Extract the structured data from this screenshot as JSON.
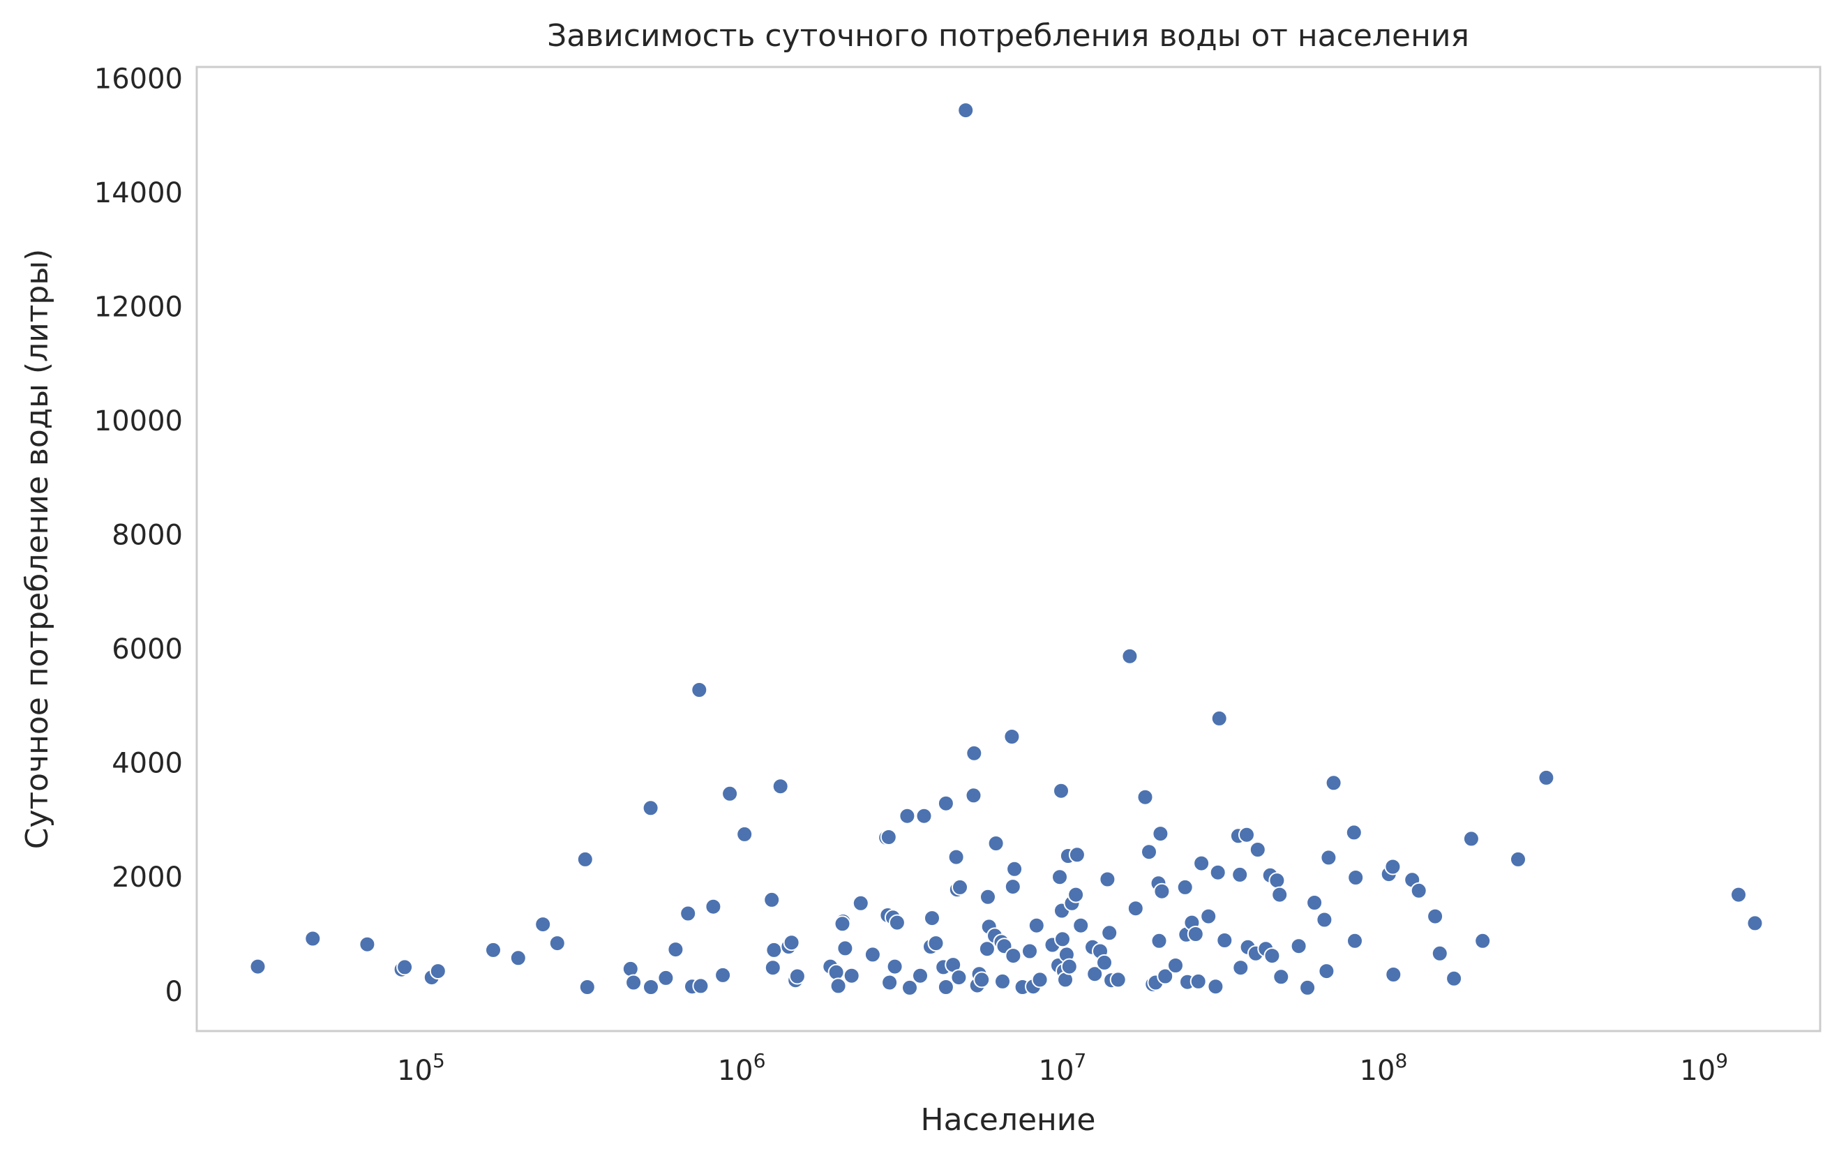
{
  "chart_data": {
    "type": "scatter",
    "title": "Зависимость суточного потребления воды от населения",
    "xlabel": "Население",
    "ylabel": "Суточное потребление воды (литры)",
    "x_scale": "log",
    "xlim": [
      20000,
      2300000000
    ],
    "ylim": [
      -700,
      16200
    ],
    "x_ticks": [
      {
        "value": 100000,
        "base": "10",
        "exp": "5"
      },
      {
        "value": 1000000,
        "base": "10",
        "exp": "6"
      },
      {
        "value": 10000000,
        "base": "10",
        "exp": "7"
      },
      {
        "value": 100000000,
        "base": "10",
        "exp": "8"
      },
      {
        "value": 1000000000,
        "base": "10",
        "exp": "9"
      }
    ],
    "y_ticks": [
      {
        "value": 0,
        "label": "0"
      },
      {
        "value": 2000,
        "label": "2000"
      },
      {
        "value": 4000,
        "label": "4000"
      },
      {
        "value": 6000,
        "label": "6000"
      },
      {
        "value": 8000,
        "label": "8000"
      },
      {
        "value": 10000,
        "label": "10000"
      },
      {
        "value": 12000,
        "label": "12000"
      },
      {
        "value": 14000,
        "label": "14000"
      },
      {
        "value": 16000,
        "label": "16000"
      }
    ],
    "grid": false,
    "marker_color": "#4c72b0",
    "points": [
      [
        31000,
        430
      ],
      [
        46000,
        920
      ],
      [
        68000,
        820
      ],
      [
        87000,
        380
      ],
      [
        89000,
        420
      ],
      [
        108000,
        240
      ],
      [
        113000,
        350
      ],
      [
        168000,
        720
      ],
      [
        201000,
        580
      ],
      [
        240000,
        1170
      ],
      [
        266000,
        840
      ],
      [
        325000,
        2310
      ],
      [
        330000,
        70
      ],
      [
        450000,
        390
      ],
      [
        460000,
        150
      ],
      [
        520000,
        3210
      ],
      [
        521000,
        70
      ],
      [
        580000,
        230
      ],
      [
        622000,
        730
      ],
      [
        680000,
        1360
      ],
      [
        700000,
        80
      ],
      [
        737000,
        5280
      ],
      [
        745000,
        90
      ],
      [
        815000,
        1480
      ],
      [
        873000,
        280
      ],
      [
        918000,
        3460
      ],
      [
        1020000,
        2750
      ],
      [
        1240000,
        1600
      ],
      [
        1250000,
        410
      ],
      [
        1260000,
        720
      ],
      [
        1320000,
        3590
      ],
      [
        1400000,
        780
      ],
      [
        1430000,
        850
      ],
      [
        1470000,
        190
      ],
      [
        1490000,
        260
      ],
      [
        1890000,
        430
      ],
      [
        1970000,
        330
      ],
      [
        2000000,
        90
      ],
      [
        2070000,
        1220
      ],
      [
        2100000,
        750
      ],
      [
        2060000,
        1180
      ],
      [
        2200000,
        270
      ],
      [
        2350000,
        1540
      ],
      [
        2560000,
        640
      ],
      [
        2820000,
        2690
      ],
      [
        2850000,
        1330
      ],
      [
        2870000,
        2700
      ],
      [
        2890000,
        150
      ],
      [
        2960000,
        1290
      ],
      [
        3050000,
        1200
      ],
      [
        3000000,
        430
      ],
      [
        3280000,
        3070
      ],
      [
        3340000,
        60
      ],
      [
        3600000,
        270
      ],
      [
        3700000,
        3070
      ],
      [
        3880000,
        780
      ],
      [
        3920000,
        1280
      ],
      [
        4030000,
        840
      ],
      [
        4250000,
        420
      ],
      [
        4330000,
        3290
      ],
      [
        4330000,
        70
      ],
      [
        4560000,
        460
      ],
      [
        4660000,
        2350
      ],
      [
        4690000,
        1780
      ],
      [
        4750000,
        240
      ],
      [
        4790000,
        1820
      ],
      [
        4990000,
        15440
      ],
      [
        5280000,
        3430
      ],
      [
        5300000,
        4170
      ],
      [
        5420000,
        100
      ],
      [
        5500000,
        300
      ],
      [
        5600000,
        200
      ],
      [
        5850000,
        1650
      ],
      [
        5820000,
        740
      ],
      [
        5900000,
        1130
      ],
      [
        6150000,
        970
      ],
      [
        6200000,
        2590
      ],
      [
        6450000,
        860
      ],
      [
        6580000,
        790
      ],
      [
        6500000,
        170
      ],
      [
        6950000,
        4460
      ],
      [
        7080000,
        2140
      ],
      [
        7000000,
        1830
      ],
      [
        7020000,
        620
      ],
      [
        7500000,
        70
      ],
      [
        7900000,
        700
      ],
      [
        8100000,
        80
      ],
      [
        8300000,
        1150
      ],
      [
        8500000,
        200
      ],
      [
        9300000,
        810
      ],
      [
        9700000,
        450
      ],
      [
        9800000,
        2000
      ],
      [
        9900000,
        3510
      ],
      [
        9950000,
        1410
      ],
      [
        10000000,
        910
      ],
      [
        10100000,
        350
      ],
      [
        10200000,
        200
      ],
      [
        10300000,
        640
      ],
      [
        10400000,
        2370
      ],
      [
        10500000,
        430
      ],
      [
        10700000,
        1540
      ],
      [
        11000000,
        1690
      ],
      [
        11100000,
        2390
      ],
      [
        11400000,
        1150
      ],
      [
        12400000,
        770
      ],
      [
        12600000,
        300
      ],
      [
        13100000,
        700
      ],
      [
        13500000,
        500
      ],
      [
        13800000,
        1960
      ],
      [
        14000000,
        1020
      ],
      [
        14200000,
        190
      ],
      [
        14900000,
        200
      ],
      [
        16200000,
        5870
      ],
      [
        16900000,
        1450
      ],
      [
        18100000,
        3400
      ],
      [
        18600000,
        2440
      ],
      [
        19100000,
        120
      ],
      [
        19500000,
        150
      ],
      [
        19900000,
        1890
      ],
      [
        20000000,
        880
      ],
      [
        20200000,
        2760
      ],
      [
        20400000,
        1750
      ],
      [
        20900000,
        260
      ],
      [
        22500000,
        450
      ],
      [
        24100000,
        1820
      ],
      [
        24300000,
        990
      ],
      [
        24500000,
        160
      ],
      [
        25300000,
        1200
      ],
      [
        26000000,
        1000
      ],
      [
        26500000,
        170
      ],
      [
        27100000,
        2240
      ],
      [
        28500000,
        1310
      ],
      [
        30000000,
        80
      ],
      [
        30500000,
        2080
      ],
      [
        30800000,
        4780
      ],
      [
        32000000,
        890
      ],
      [
        35300000,
        2720
      ],
      [
        35700000,
        2040
      ],
      [
        35900000,
        410
      ],
      [
        37500000,
        2740
      ],
      [
        37800000,
        770
      ],
      [
        40000000,
        660
      ],
      [
        40600000,
        2480
      ],
      [
        43000000,
        740
      ],
      [
        44400000,
        2030
      ],
      [
        45000000,
        620
      ],
      [
        46600000,
        1940
      ],
      [
        47500000,
        1690
      ],
      [
        48000000,
        250
      ],
      [
        54500000,
        790
      ],
      [
        58000000,
        60
      ],
      [
        61000000,
        1550
      ],
      [
        65500000,
        1250
      ],
      [
        66500000,
        350
      ],
      [
        67500000,
        2340
      ],
      [
        70000000,
        3650
      ],
      [
        81000000,
        2780
      ],
      [
        81500000,
        880
      ],
      [
        82000000,
        1990
      ],
      [
        104000000,
        2050
      ],
      [
        107000000,
        2180
      ],
      [
        107500000,
        290
      ],
      [
        123000000,
        1950
      ],
      [
        129000000,
        1760
      ],
      [
        145000000,
        1310
      ],
      [
        150000000,
        660
      ],
      [
        166000000,
        220
      ],
      [
        188000000,
        2670
      ],
      [
        204000000,
        880
      ],
      [
        263000000,
        2310
      ],
      [
        322000000,
        3740
      ],
      [
        1280000000,
        1690
      ],
      [
        1440000000,
        1190
      ]
    ]
  }
}
